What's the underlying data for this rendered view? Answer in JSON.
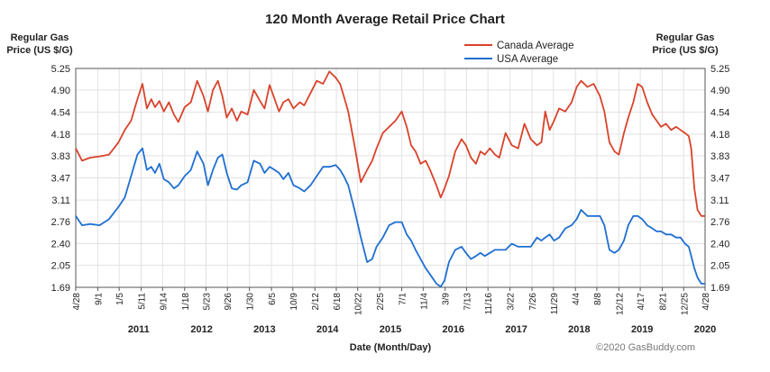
{
  "chart_data": {
    "type": "line",
    "title": "120 Month Average Retail Price Chart",
    "ylabel_left": [
      "Regular Gas",
      "Price (US $/G)"
    ],
    "ylabel_right": [
      "Regular Gas",
      "Price (US $/G)"
    ],
    "xlabel": "Date (Month/Day)",
    "credit": "©2020 GasBuddy.com",
    "ylim": [
      1.69,
      5.25
    ],
    "yticks": [
      "5.25",
      "4.90",
      "4.54",
      "4.18",
      "3.83",
      "3.47",
      "3.11",
      "2.76",
      "2.40",
      "2.05",
      "1.69"
    ],
    "ytick_values": [
      5.25,
      4.9,
      4.54,
      4.18,
      3.83,
      3.47,
      3.11,
      2.76,
      2.4,
      2.05,
      1.69
    ],
    "xlim": [
      2010.32,
      2020.32
    ],
    "xticks": [
      {
        "label": "4/28",
        "x": 2010.32
      },
      {
        "label": "9/1",
        "x": 2010.67
      },
      {
        "label": "1/5",
        "x": 2011.01
      },
      {
        "label": "5/11",
        "x": 2011.36
      },
      {
        "label": "9/14",
        "x": 2011.7
      },
      {
        "label": "1/18",
        "x": 2012.05
      },
      {
        "label": "5/23",
        "x": 2012.39
      },
      {
        "label": "9/26",
        "x": 2012.73
      },
      {
        "label": "1/30",
        "x": 2013.08
      },
      {
        "label": "6/5",
        "x": 2013.43
      },
      {
        "label": "10/9",
        "x": 2013.77
      },
      {
        "label": "2/12",
        "x": 2014.12
      },
      {
        "label": "6/18",
        "x": 2014.46
      },
      {
        "label": "10/22",
        "x": 2014.8
      },
      {
        "label": "2/25",
        "x": 2015.15
      },
      {
        "label": "7/1",
        "x": 2015.5
      },
      {
        "label": "11/4",
        "x": 2015.84
      },
      {
        "label": "3/9",
        "x": 2016.19
      },
      {
        "label": "7/13",
        "x": 2016.53
      },
      {
        "label": "11/16",
        "x": 2016.87
      },
      {
        "label": "3/22",
        "x": 2017.22
      },
      {
        "label": "7/26",
        "x": 2017.57
      },
      {
        "label": "11/29",
        "x": 2017.91
      },
      {
        "label": "4/4",
        "x": 2018.26
      },
      {
        "label": "8/8",
        "x": 2018.6
      },
      {
        "label": "12/12",
        "x": 2018.95
      },
      {
        "label": "4/17",
        "x": 2019.29
      },
      {
        "label": "8/21",
        "x": 2019.64
      },
      {
        "label": "12/25",
        "x": 2019.98
      },
      {
        "label": "4/28",
        "x": 2020.32
      }
    ],
    "years": [
      {
        "label": "2011",
        "x": 2011.32
      },
      {
        "label": "2012",
        "x": 2012.32
      },
      {
        "label": "2013",
        "x": 2013.32
      },
      {
        "label": "2014",
        "x": 2014.32
      },
      {
        "label": "2015",
        "x": 2015.32
      },
      {
        "label": "2016",
        "x": 2016.32
      },
      {
        "label": "2017",
        "x": 2017.32
      },
      {
        "label": "2018",
        "x": 2018.32
      },
      {
        "label": "2019",
        "x": 2019.32
      },
      {
        "label": "2020",
        "x": 2020.32
      }
    ],
    "grid": true,
    "legend_position": "top-right",
    "series": [
      {
        "name": "Canada Average",
        "color": "#d9432b",
        "x": [
          2010.32,
          2010.42,
          2010.55,
          2010.7,
          2010.85,
          2011.0,
          2011.1,
          2011.2,
          2011.3,
          2011.38,
          2011.45,
          2011.52,
          2011.58,
          2011.65,
          2011.72,
          2011.8,
          2011.88,
          2011.95,
          2012.05,
          2012.15,
          2012.25,
          2012.35,
          2012.42,
          2012.5,
          2012.58,
          2012.65,
          2012.72,
          2012.8,
          2012.88,
          2012.95,
          2013.05,
          2013.15,
          2013.25,
          2013.32,
          2013.4,
          2013.48,
          2013.55,
          2013.62,
          2013.7,
          2013.78,
          2013.88,
          2013.95,
          2014.05,
          2014.15,
          2014.25,
          2014.35,
          2014.45,
          2014.52,
          2014.58,
          2014.65,
          2014.75,
          2014.85,
          2014.95,
          2015.03,
          2015.1,
          2015.2,
          2015.3,
          2015.4,
          2015.5,
          2015.58,
          2015.65,
          2015.72,
          2015.8,
          2015.88,
          2015.95,
          2016.05,
          2016.12,
          2016.18,
          2016.25,
          2016.35,
          2016.45,
          2016.52,
          2016.6,
          2016.68,
          2016.75,
          2016.82,
          2016.9,
          2016.98,
          2017.05,
          2017.15,
          2017.25,
          2017.35,
          2017.45,
          2017.55,
          2017.65,
          2017.72,
          2017.78,
          2017.85,
          2017.92,
          2018.0,
          2018.1,
          2018.2,
          2018.28,
          2018.35,
          2018.45,
          2018.55,
          2018.65,
          2018.72,
          2018.8,
          2018.88,
          2018.95,
          2019.03,
          2019.1,
          2019.18,
          2019.25,
          2019.32,
          2019.4,
          2019.48,
          2019.55,
          2019.62,
          2019.7,
          2019.78,
          2019.86,
          2019.93,
          2020.0,
          2020.06,
          2020.1,
          2020.15,
          2020.2,
          2020.26,
          2020.32
        ],
        "y": [
          3.95,
          3.75,
          3.8,
          3.82,
          3.85,
          4.05,
          4.25,
          4.4,
          4.75,
          5.0,
          4.6,
          4.75,
          4.62,
          4.72,
          4.55,
          4.7,
          4.5,
          4.38,
          4.62,
          4.7,
          5.05,
          4.8,
          4.55,
          4.9,
          5.05,
          4.8,
          4.45,
          4.6,
          4.4,
          4.55,
          4.5,
          4.9,
          4.72,
          4.6,
          4.98,
          4.75,
          4.55,
          4.7,
          4.75,
          4.6,
          4.7,
          4.65,
          4.85,
          5.05,
          5.0,
          5.2,
          5.1,
          5.0,
          4.8,
          4.55,
          4.0,
          3.4,
          3.6,
          3.75,
          3.95,
          4.2,
          4.3,
          4.4,
          4.55,
          4.3,
          4.0,
          3.9,
          3.7,
          3.75,
          3.6,
          3.35,
          3.15,
          3.3,
          3.5,
          3.9,
          4.1,
          4.0,
          3.8,
          3.7,
          3.9,
          3.85,
          3.95,
          3.85,
          3.8,
          4.2,
          4.0,
          3.95,
          4.35,
          4.1,
          4.0,
          4.05,
          4.55,
          4.25,
          4.4,
          4.6,
          4.55,
          4.7,
          4.95,
          5.05,
          4.95,
          5.0,
          4.8,
          4.55,
          4.05,
          3.9,
          3.85,
          4.2,
          4.45,
          4.7,
          5.0,
          4.95,
          4.7,
          4.5,
          4.4,
          4.3,
          4.35,
          4.25,
          4.3,
          4.25,
          4.2,
          4.15,
          3.95,
          3.3,
          2.95,
          2.85,
          2.85
        ]
      },
      {
        "name": "USA Average",
        "color": "#1f6fd1",
        "x": [
          2010.32,
          2010.42,
          2010.55,
          2010.7,
          2010.85,
          2011.0,
          2011.1,
          2011.2,
          2011.3,
          2011.38,
          2011.45,
          2011.52,
          2011.58,
          2011.65,
          2011.72,
          2011.8,
          2011.88,
          2011.95,
          2012.05,
          2012.15,
          2012.25,
          2012.35,
          2012.42,
          2012.5,
          2012.58,
          2012.65,
          2012.72,
          2012.8,
          2012.88,
          2012.95,
          2013.05,
          2013.15,
          2013.25,
          2013.32,
          2013.4,
          2013.48,
          2013.55,
          2013.62,
          2013.7,
          2013.78,
          2013.88,
          2013.95,
          2014.05,
          2014.15,
          2014.25,
          2014.35,
          2014.45,
          2014.52,
          2014.58,
          2014.65,
          2014.75,
          2014.85,
          2014.95,
          2015.03,
          2015.1,
          2015.2,
          2015.3,
          2015.4,
          2015.5,
          2015.58,
          2015.65,
          2015.72,
          2015.8,
          2015.88,
          2015.95,
          2016.05,
          2016.12,
          2016.18,
          2016.25,
          2016.35,
          2016.45,
          2016.52,
          2016.6,
          2016.68,
          2016.75,
          2016.82,
          2016.9,
          2016.98,
          2017.05,
          2017.15,
          2017.25,
          2017.35,
          2017.45,
          2017.55,
          2017.65,
          2017.72,
          2017.78,
          2017.85,
          2017.92,
          2018.0,
          2018.1,
          2018.2,
          2018.28,
          2018.35,
          2018.45,
          2018.55,
          2018.65,
          2018.72,
          2018.8,
          2018.88,
          2018.95,
          2019.03,
          2019.1,
          2019.18,
          2019.25,
          2019.32,
          2019.4,
          2019.48,
          2019.55,
          2019.62,
          2019.7,
          2019.78,
          2019.86,
          2019.93,
          2020.0,
          2020.06,
          2020.1,
          2020.15,
          2020.2,
          2020.26,
          2020.32
        ],
        "y": [
          2.85,
          2.7,
          2.72,
          2.7,
          2.8,
          3.0,
          3.15,
          3.5,
          3.85,
          3.95,
          3.6,
          3.65,
          3.55,
          3.7,
          3.45,
          3.4,
          3.3,
          3.35,
          3.5,
          3.6,
          3.9,
          3.7,
          3.35,
          3.6,
          3.8,
          3.85,
          3.55,
          3.3,
          3.28,
          3.35,
          3.4,
          3.75,
          3.7,
          3.55,
          3.65,
          3.6,
          3.55,
          3.45,
          3.55,
          3.35,
          3.3,
          3.25,
          3.35,
          3.5,
          3.65,
          3.65,
          3.68,
          3.6,
          3.5,
          3.35,
          2.95,
          2.5,
          2.1,
          2.15,
          2.35,
          2.5,
          2.7,
          2.75,
          2.75,
          2.55,
          2.45,
          2.3,
          2.15,
          2.0,
          1.9,
          1.75,
          1.7,
          1.8,
          2.1,
          2.3,
          2.35,
          2.25,
          2.15,
          2.2,
          2.25,
          2.2,
          2.25,
          2.3,
          2.3,
          2.3,
          2.4,
          2.35,
          2.35,
          2.35,
          2.5,
          2.45,
          2.5,
          2.55,
          2.45,
          2.5,
          2.65,
          2.7,
          2.8,
          2.95,
          2.85,
          2.85,
          2.85,
          2.7,
          2.3,
          2.25,
          2.3,
          2.45,
          2.7,
          2.85,
          2.85,
          2.8,
          2.7,
          2.65,
          2.6,
          2.6,
          2.55,
          2.55,
          2.5,
          2.5,
          2.4,
          2.35,
          2.2,
          2.0,
          1.85,
          1.75,
          1.75
        ]
      }
    ]
  }
}
